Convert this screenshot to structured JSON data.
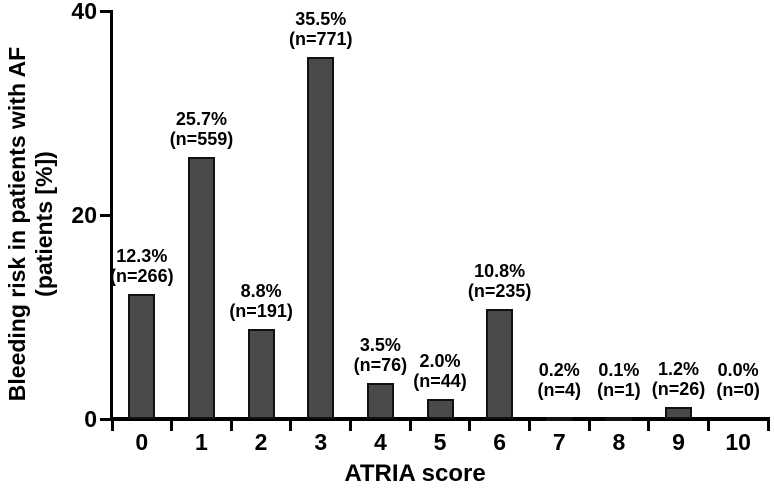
{
  "chart_data": {
    "type": "bar",
    "title": "",
    "xlabel": "ATRIA score",
    "ylabel": "Bleeding risk in patients with AF (patients [%])",
    "ylabel_line1": "Bleeding risk in patients with AF",
    "ylabel_line2": "(patients [%])",
    "categories": [
      "0",
      "1",
      "2",
      "3",
      "4",
      "5",
      "6",
      "7",
      "8",
      "9",
      "10"
    ],
    "values": [
      12.3,
      25.7,
      8.8,
      35.5,
      3.5,
      2.0,
      10.8,
      0.2,
      0.1,
      1.2,
      0.0
    ],
    "counts": [
      266,
      559,
      191,
      771,
      76,
      44,
      235,
      4,
      1,
      26,
      0
    ],
    "bars": [
      {
        "score": "0",
        "pct": 12.3,
        "n": 266,
        "pct_label": "12.3%",
        "n_label": "(n=266)"
      },
      {
        "score": "1",
        "pct": 25.7,
        "n": 559,
        "pct_label": "25.7%",
        "n_label": "(n=559)"
      },
      {
        "score": "2",
        "pct": 8.8,
        "n": 191,
        "pct_label": "8.8%",
        "n_label": "(n=191)"
      },
      {
        "score": "3",
        "pct": 35.5,
        "n": 771,
        "pct_label": "35.5%",
        "n_label": "(n=771)"
      },
      {
        "score": "4",
        "pct": 3.5,
        "n": 76,
        "pct_label": "3.5%",
        "n_label": "(n=76)"
      },
      {
        "score": "5",
        "pct": 2.0,
        "n": 44,
        "pct_label": "2.0%",
        "n_label": "(n=44)"
      },
      {
        "score": "6",
        "pct": 10.8,
        "n": 235,
        "pct_label": "10.8%",
        "n_label": "(n=235)"
      },
      {
        "score": "7",
        "pct": 0.2,
        "n": 4,
        "pct_label": "0.2%",
        "n_label": "(n=4)"
      },
      {
        "score": "8",
        "pct": 0.1,
        "n": 1,
        "pct_label": "0.1%",
        "n_label": "(n=1)"
      },
      {
        "score": "9",
        "pct": 1.2,
        "n": 26,
        "pct_label": "1.2%",
        "n_label": "(n=26)"
      },
      {
        "score": "10",
        "pct": 0.0,
        "n": 0,
        "pct_label": "0.0%",
        "n_label": "(n=0)"
      }
    ],
    "yticks": [
      "0",
      "20",
      "40"
    ],
    "ytick_values": [
      0,
      20,
      40
    ],
    "ylim": [
      0,
      40
    ],
    "grid": false,
    "legend": false,
    "bar_color": "#4a4a4a",
    "bar_border_color": "#111111",
    "axis_color": "#000000",
    "text_color": "#000000",
    "background_color": "#ffffff"
  }
}
